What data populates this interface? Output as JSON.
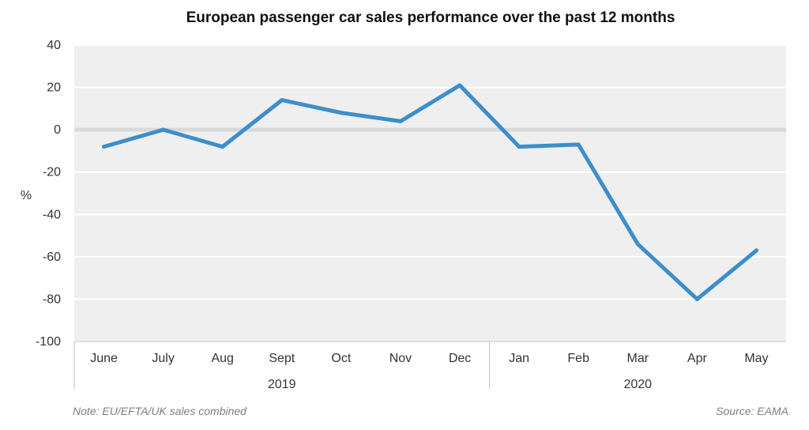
{
  "chart_data": {
    "type": "line",
    "title": "European passenger car sales performance over the past 12 months",
    "ylabel": "%",
    "xlabel": "",
    "ylim": [
      -100,
      40
    ],
    "yticks": [
      40,
      20,
      0,
      -20,
      -40,
      -60,
      -80,
      -100
    ],
    "categories": [
      "June",
      "July",
      "Aug",
      "Sept",
      "Oct",
      "Nov",
      "Dec",
      "Jan",
      "Feb",
      "Mar",
      "Apr",
      "May"
    ],
    "year_groups": [
      {
        "label": "2019",
        "count": 7
      },
      {
        "label": "2020",
        "count": 5
      }
    ],
    "series": [
      {
        "values": [
          -8,
          0,
          -8,
          14,
          8,
          4,
          21,
          -8,
          -7,
          -54,
          -80,
          -57
        ],
        "color": "#3d8ecb"
      }
    ],
    "grid": true,
    "colors": {
      "plot_bg": "#efefef",
      "grid": "#ffffff",
      "zero_line": "#d9d9d9",
      "axis": "#bfbfbf"
    }
  },
  "footer": {
    "note": "Note: EU/EFTA/UK sales combined",
    "source": "Source: EAMA"
  }
}
